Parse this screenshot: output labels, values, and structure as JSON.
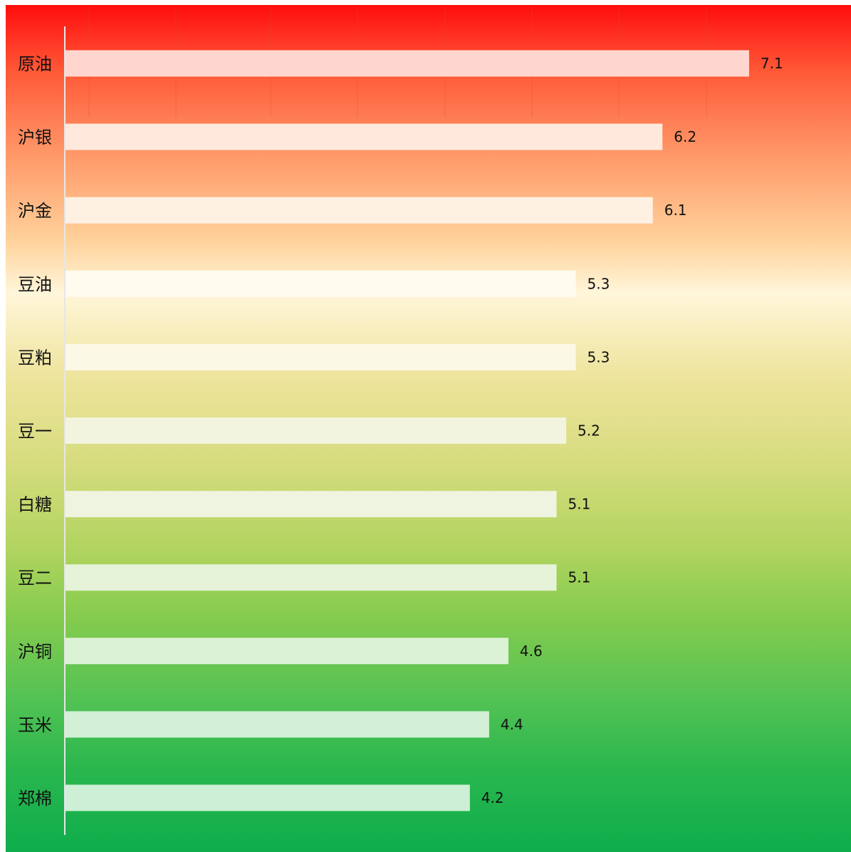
{
  "chart_data": {
    "type": "bar",
    "orientation": "horizontal",
    "categories": [
      "原油",
      "沪银",
      "沪金",
      "豆油",
      "豆粕",
      "豆一",
      "白糖",
      "豆二",
      "沪铜",
      "玉米",
      "郑棉"
    ],
    "values": [
      7.1,
      6.2,
      6.1,
      5.3,
      5.3,
      5.2,
      5.1,
      5.1,
      4.6,
      4.4,
      4.2
    ],
    "value_labels": [
      "7.1",
      "6.2",
      "6.1",
      "5.3",
      "5.3",
      "5.2",
      "5.1",
      "5.1",
      "4.6",
      "4.4",
      "4.2"
    ],
    "xlim": [
      0,
      8
    ],
    "title": "",
    "xlabel": "",
    "ylabel": "",
    "grid": true,
    "legend": "none",
    "background_gradient": [
      "#ff0d0d",
      "#fff6da",
      "#0ead4c"
    ],
    "bar_colors": [
      "#ffd6cf",
      "#ffe8dc",
      "#fff1e2",
      "#fffbee",
      "#fcf8e6",
      "#f3f4df",
      "#eef4df",
      "#e6f3d9",
      "#dcf2d6",
      "#d3f0d6",
      "#cdefd6"
    ]
  }
}
